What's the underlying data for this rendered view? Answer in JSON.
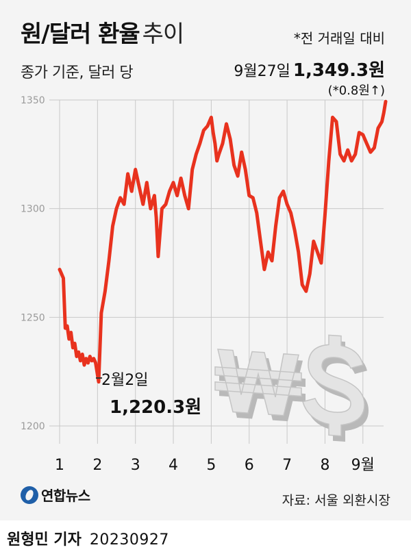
{
  "header": {
    "title_main": "원/달러 환율",
    "title_sub": "추이",
    "subtitle": "종가 기준, 달러 당",
    "note": "*전 거래일 대비"
  },
  "latest": {
    "date": "9월27일",
    "value": "1,349.3원",
    "change": "(*0.8원↑)"
  },
  "low": {
    "date": "2월2일",
    "value": "1,220.3원"
  },
  "footer": {
    "brand": "연합뉴스",
    "source": "자료: 서울 외환시장",
    "reporter": "원형민 기자",
    "date": "20230927"
  },
  "colors": {
    "line": "#e8321e",
    "background": "#f4f4f4",
    "grid": "#c8c8c8"
  },
  "chart_data": {
    "type": "line",
    "title": "원/달러 환율 추이",
    "subtitle": "종가 기준, 달러 당",
    "y_ticks": [
      1350,
      1300,
      1250,
      1200
    ],
    "ylim": [
      1200,
      1350
    ],
    "x_tick_labels": [
      "1",
      "2",
      "3",
      "4",
      "5",
      "6",
      "7",
      "8",
      "9월"
    ],
    "x_tick_months": [
      1,
      2,
      3,
      4,
      5,
      6,
      7,
      8,
      9
    ],
    "grid": "horizontal",
    "series": [
      {
        "values": [
          {
            "x": 1.0,
            "y": 1272
          },
          {
            "x": 1.05,
            "y": 1270
          },
          {
            "x": 1.1,
            "y": 1268
          },
          {
            "x": 1.15,
            "y": 1245
          },
          {
            "x": 1.2,
            "y": 1246
          },
          {
            "x": 1.25,
            "y": 1240
          },
          {
            "x": 1.3,
            "y": 1243
          },
          {
            "x": 1.35,
            "y": 1236
          },
          {
            "x": 1.4,
            "y": 1238
          },
          {
            "x": 1.45,
            "y": 1232
          },
          {
            "x": 1.5,
            "y": 1234
          },
          {
            "x": 1.55,
            "y": 1230
          },
          {
            "x": 1.6,
            "y": 1233
          },
          {
            "x": 1.65,
            "y": 1228
          },
          {
            "x": 1.7,
            "y": 1231
          },
          {
            "x": 1.75,
            "y": 1229
          },
          {
            "x": 1.8,
            "y": 1232
          },
          {
            "x": 1.85,
            "y": 1230
          },
          {
            "x": 1.9,
            "y": 1231
          },
          {
            "x": 1.95,
            "y": 1229
          },
          {
            "x": 2.03,
            "y": 1220.3
          },
          {
            "x": 2.1,
            "y": 1252
          },
          {
            "x": 2.2,
            "y": 1262
          },
          {
            "x": 2.3,
            "y": 1276
          },
          {
            "x": 2.4,
            "y": 1292
          },
          {
            "x": 2.5,
            "y": 1300
          },
          {
            "x": 2.6,
            "y": 1305
          },
          {
            "x": 2.7,
            "y": 1302
          },
          {
            "x": 2.8,
            "y": 1316
          },
          {
            "x": 2.9,
            "y": 1308
          },
          {
            "x": 3.0,
            "y": 1318
          },
          {
            "x": 3.1,
            "y": 1310
          },
          {
            "x": 3.2,
            "y": 1302
          },
          {
            "x": 3.3,
            "y": 1312
          },
          {
            "x": 3.4,
            "y": 1300
          },
          {
            "x": 3.5,
            "y": 1306
          },
          {
            "x": 3.55,
            "y": 1296
          },
          {
            "x": 3.6,
            "y": 1278
          },
          {
            "x": 3.7,
            "y": 1300
          },
          {
            "x": 3.8,
            "y": 1302
          },
          {
            "x": 3.9,
            "y": 1308
          },
          {
            "x": 4.0,
            "y": 1312
          },
          {
            "x": 4.1,
            "y": 1306
          },
          {
            "x": 4.2,
            "y": 1314
          },
          {
            "x": 4.3,
            "y": 1306
          },
          {
            "x": 4.4,
            "y": 1300
          },
          {
            "x": 4.5,
            "y": 1318
          },
          {
            "x": 4.6,
            "y": 1325
          },
          {
            "x": 4.7,
            "y": 1330
          },
          {
            "x": 4.8,
            "y": 1336
          },
          {
            "x": 4.9,
            "y": 1338
          },
          {
            "x": 5.0,
            "y": 1342
          },
          {
            "x": 5.05,
            "y": 1335
          },
          {
            "x": 5.1,
            "y": 1330
          },
          {
            "x": 5.15,
            "y": 1322
          },
          {
            "x": 5.2,
            "y": 1325
          },
          {
            "x": 5.3,
            "y": 1330
          },
          {
            "x": 5.4,
            "y": 1339
          },
          {
            "x": 5.5,
            "y": 1332
          },
          {
            "x": 5.6,
            "y": 1320
          },
          {
            "x": 5.7,
            "y": 1315
          },
          {
            "x": 5.8,
            "y": 1326
          },
          {
            "x": 5.9,
            "y": 1318
          },
          {
            "x": 6.0,
            "y": 1306
          },
          {
            "x": 6.1,
            "y": 1305
          },
          {
            "x": 6.2,
            "y": 1298
          },
          {
            "x": 6.3,
            "y": 1285
          },
          {
            "x": 6.4,
            "y": 1272
          },
          {
            "x": 6.5,
            "y": 1280
          },
          {
            "x": 6.6,
            "y": 1276
          },
          {
            "x": 6.7,
            "y": 1292
          },
          {
            "x": 6.8,
            "y": 1305
          },
          {
            "x": 6.9,
            "y": 1308
          },
          {
            "x": 7.0,
            "y": 1302
          },
          {
            "x": 7.1,
            "y": 1298
          },
          {
            "x": 7.2,
            "y": 1290
          },
          {
            "x": 7.3,
            "y": 1280
          },
          {
            "x": 7.4,
            "y": 1265
          },
          {
            "x": 7.5,
            "y": 1262
          },
          {
            "x": 7.6,
            "y": 1270
          },
          {
            "x": 7.7,
            "y": 1285
          },
          {
            "x": 7.8,
            "y": 1280
          },
          {
            "x": 7.9,
            "y": 1275
          },
          {
            "x": 8.0,
            "y": 1297
          },
          {
            "x": 8.1,
            "y": 1322
          },
          {
            "x": 8.2,
            "y": 1342
          },
          {
            "x": 8.3,
            "y": 1340
          },
          {
            "x": 8.4,
            "y": 1325
          },
          {
            "x": 8.5,
            "y": 1322
          },
          {
            "x": 8.6,
            "y": 1327
          },
          {
            "x": 8.7,
            "y": 1322
          },
          {
            "x": 8.8,
            "y": 1325
          },
          {
            "x": 8.9,
            "y": 1335
          },
          {
            "x": 9.0,
            "y": 1334
          },
          {
            "x": 9.1,
            "y": 1330
          },
          {
            "x": 9.2,
            "y": 1326
          },
          {
            "x": 9.3,
            "y": 1328
          },
          {
            "x": 9.4,
            "y": 1337
          },
          {
            "x": 9.5,
            "y": 1340
          },
          {
            "x": 9.55,
            "y": 1344
          },
          {
            "x": 9.6,
            "y": 1349.3
          }
        ]
      }
    ]
  }
}
